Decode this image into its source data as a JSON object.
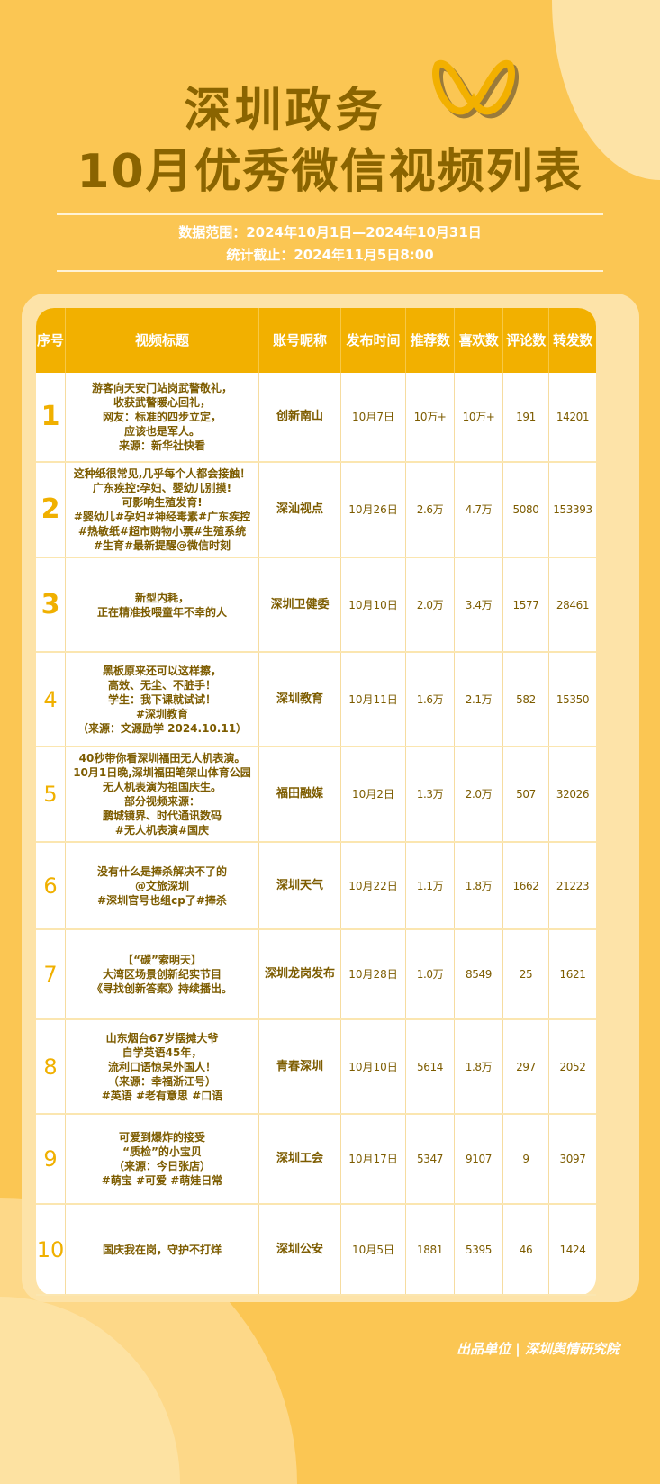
{
  "header": {
    "title_line1": "深圳政务",
    "title_line2": "10月优秀微信视频列表",
    "data_range": "数据范围：2024年10月1日—2024年10月31日",
    "cutoff": "统计截止：2024年11月5日8:00",
    "logo": "wechat-channels-logo"
  },
  "colors": {
    "background": "#fbc653",
    "header": "#f2b000",
    "text": "#7d5c00",
    "accent": "#f0b000"
  },
  "table": {
    "columns": [
      "序号",
      "视频标题",
      "账号昵称",
      "发布时间",
      "推荐数",
      "喜欢数",
      "评论数",
      "转发数"
    ],
    "rows": [
      {
        "rank": "1",
        "title": "游客向天安门站岗武警敬礼，\n收获武警暖心回礼，\n网友：标准的四步立定，\n应该也是军人。\n来源：新华社快看",
        "account": "创新南山",
        "date": "10月7日",
        "recommend": "10万+",
        "likes": "10万+",
        "comments": "191",
        "shares": "14201"
      },
      {
        "rank": "2",
        "title": "这种纸很常见,几乎每个人都会接触！\n广东疾控:孕妇、婴幼儿别摸!\n可影响生殖发育!\n#婴幼儿#孕妇#神经毒素#广东疾控\n#热敏纸#超市购物小票#生殖系统\n#生育#最新提醒@微信时刻",
        "account": "深汕视点",
        "date": "10月26日",
        "recommend": "2.6万",
        "likes": "4.7万",
        "comments": "5080",
        "shares": "153393"
      },
      {
        "rank": "3",
        "title": "新型内耗，\n正在精准投喂童年不幸的人",
        "account": "深圳卫健委",
        "date": "10月10日",
        "recommend": "2.0万",
        "likes": "3.4万",
        "comments": "1577",
        "shares": "28461"
      },
      {
        "rank": "4",
        "title": "黑板原来还可以这样擦，\n高效、无尘、不脏手！\n学生：我下课就试试！\n#深圳教育\n（来源：文源励学 2024.10.11）",
        "account": "深圳教育",
        "date": "10月11日",
        "recommend": "1.6万",
        "likes": "2.1万",
        "comments": "582",
        "shares": "15350"
      },
      {
        "rank": "5",
        "title": "40秒带你看深圳福田无人机表演。\n10月1日晚,深圳福田笔架山体育公园\n无人机表演为祖国庆生。\n部分视频来源：\n鹏城镜界、时代通讯数码\n#无人机表演#国庆",
        "account": "福田融媒",
        "date": "10月2日",
        "recommend": "1.3万",
        "likes": "2.0万",
        "comments": "507",
        "shares": "32026"
      },
      {
        "rank": "6",
        "title": "没有什么是捧杀解决不了的\n@文旅深圳\n#深圳官号也组cp了#捧杀",
        "account": "深圳天气",
        "date": "10月22日",
        "recommend": "1.1万",
        "likes": "1.8万",
        "comments": "1662",
        "shares": "21223"
      },
      {
        "rank": "7",
        "title": "【“碳”索明天】\n大湾区场景创新纪实节目\n《寻找创新答案》持续播出。",
        "account": "深圳龙岗发布",
        "date": "10月28日",
        "recommend": "1.0万",
        "likes": "8549",
        "comments": "25",
        "shares": "1621"
      },
      {
        "rank": "8",
        "title": "山东烟台67岁摆摊大爷\n自学英语45年，\n流利口语惊呆外国人！\n（来源：幸福浙江号）\n#英语 #老有意思 #口语",
        "account": "青春深圳",
        "date": "10月10日",
        "recommend": "5614",
        "likes": "1.8万",
        "comments": "297",
        "shares": "2052"
      },
      {
        "rank": "9",
        "title": "可爱到爆炸的接受\n“质检”的小宝贝\n（来源：今日张店）\n#萌宝 #可爱 #萌娃日常",
        "account": "深圳工会",
        "date": "10月17日",
        "recommend": "5347",
        "likes": "9107",
        "comments": "9",
        "shares": "3097"
      },
      {
        "rank": "10",
        "title": "国庆我在岗，守护不打烊",
        "account": "深圳公安",
        "date": "10月5日",
        "recommend": "1881",
        "likes": "5395",
        "comments": "46",
        "shares": "1424"
      }
    ]
  },
  "footer": "出品单位 | 深圳舆情研究院"
}
